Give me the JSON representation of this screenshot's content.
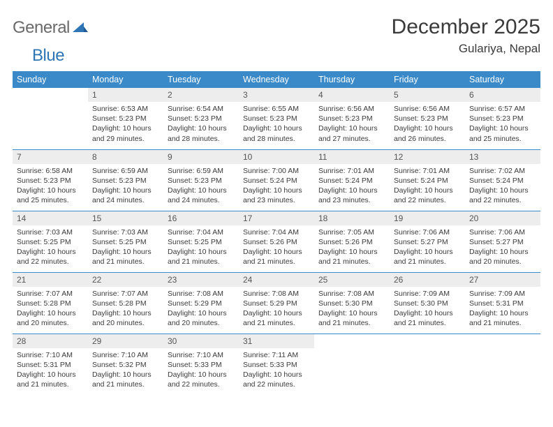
{
  "brand": {
    "part1": "General",
    "part2": "Blue"
  },
  "title": "December 2025",
  "location": "Gulariya, Nepal",
  "colors": {
    "header_bg": "#3a8ac9",
    "header_text": "#ffffff",
    "daynum_bg": "#ededed",
    "daynum_text": "#555555",
    "body_text": "#3a3a3a",
    "rule": "#3a8ac9",
    "brand_gray": "#6a6a6a",
    "brand_blue": "#2e75b6"
  },
  "weekdays": [
    "Sunday",
    "Monday",
    "Tuesday",
    "Wednesday",
    "Thursday",
    "Friday",
    "Saturday"
  ],
  "weeks": [
    [
      {
        "n": "",
        "sr": "",
        "ss": "",
        "dl": ""
      },
      {
        "n": "1",
        "sr": "Sunrise: 6:53 AM",
        "ss": "Sunset: 5:23 PM",
        "dl": "Daylight: 10 hours and 29 minutes."
      },
      {
        "n": "2",
        "sr": "Sunrise: 6:54 AM",
        "ss": "Sunset: 5:23 PM",
        "dl": "Daylight: 10 hours and 28 minutes."
      },
      {
        "n": "3",
        "sr": "Sunrise: 6:55 AM",
        "ss": "Sunset: 5:23 PM",
        "dl": "Daylight: 10 hours and 28 minutes."
      },
      {
        "n": "4",
        "sr": "Sunrise: 6:56 AM",
        "ss": "Sunset: 5:23 PM",
        "dl": "Daylight: 10 hours and 27 minutes."
      },
      {
        "n": "5",
        "sr": "Sunrise: 6:56 AM",
        "ss": "Sunset: 5:23 PM",
        "dl": "Daylight: 10 hours and 26 minutes."
      },
      {
        "n": "6",
        "sr": "Sunrise: 6:57 AM",
        "ss": "Sunset: 5:23 PM",
        "dl": "Daylight: 10 hours and 25 minutes."
      }
    ],
    [
      {
        "n": "7",
        "sr": "Sunrise: 6:58 AM",
        "ss": "Sunset: 5:23 PM",
        "dl": "Daylight: 10 hours and 25 minutes."
      },
      {
        "n": "8",
        "sr": "Sunrise: 6:59 AM",
        "ss": "Sunset: 5:23 PM",
        "dl": "Daylight: 10 hours and 24 minutes."
      },
      {
        "n": "9",
        "sr": "Sunrise: 6:59 AM",
        "ss": "Sunset: 5:23 PM",
        "dl": "Daylight: 10 hours and 24 minutes."
      },
      {
        "n": "10",
        "sr": "Sunrise: 7:00 AM",
        "ss": "Sunset: 5:24 PM",
        "dl": "Daylight: 10 hours and 23 minutes."
      },
      {
        "n": "11",
        "sr": "Sunrise: 7:01 AM",
        "ss": "Sunset: 5:24 PM",
        "dl": "Daylight: 10 hours and 23 minutes."
      },
      {
        "n": "12",
        "sr": "Sunrise: 7:01 AM",
        "ss": "Sunset: 5:24 PM",
        "dl": "Daylight: 10 hours and 22 minutes."
      },
      {
        "n": "13",
        "sr": "Sunrise: 7:02 AM",
        "ss": "Sunset: 5:24 PM",
        "dl": "Daylight: 10 hours and 22 minutes."
      }
    ],
    [
      {
        "n": "14",
        "sr": "Sunrise: 7:03 AM",
        "ss": "Sunset: 5:25 PM",
        "dl": "Daylight: 10 hours and 22 minutes."
      },
      {
        "n": "15",
        "sr": "Sunrise: 7:03 AM",
        "ss": "Sunset: 5:25 PM",
        "dl": "Daylight: 10 hours and 21 minutes."
      },
      {
        "n": "16",
        "sr": "Sunrise: 7:04 AM",
        "ss": "Sunset: 5:25 PM",
        "dl": "Daylight: 10 hours and 21 minutes."
      },
      {
        "n": "17",
        "sr": "Sunrise: 7:04 AM",
        "ss": "Sunset: 5:26 PM",
        "dl": "Daylight: 10 hours and 21 minutes."
      },
      {
        "n": "18",
        "sr": "Sunrise: 7:05 AM",
        "ss": "Sunset: 5:26 PM",
        "dl": "Daylight: 10 hours and 21 minutes."
      },
      {
        "n": "19",
        "sr": "Sunrise: 7:06 AM",
        "ss": "Sunset: 5:27 PM",
        "dl": "Daylight: 10 hours and 21 minutes."
      },
      {
        "n": "20",
        "sr": "Sunrise: 7:06 AM",
        "ss": "Sunset: 5:27 PM",
        "dl": "Daylight: 10 hours and 20 minutes."
      }
    ],
    [
      {
        "n": "21",
        "sr": "Sunrise: 7:07 AM",
        "ss": "Sunset: 5:28 PM",
        "dl": "Daylight: 10 hours and 20 minutes."
      },
      {
        "n": "22",
        "sr": "Sunrise: 7:07 AM",
        "ss": "Sunset: 5:28 PM",
        "dl": "Daylight: 10 hours and 20 minutes."
      },
      {
        "n": "23",
        "sr": "Sunrise: 7:08 AM",
        "ss": "Sunset: 5:29 PM",
        "dl": "Daylight: 10 hours and 20 minutes."
      },
      {
        "n": "24",
        "sr": "Sunrise: 7:08 AM",
        "ss": "Sunset: 5:29 PM",
        "dl": "Daylight: 10 hours and 21 minutes."
      },
      {
        "n": "25",
        "sr": "Sunrise: 7:08 AM",
        "ss": "Sunset: 5:30 PM",
        "dl": "Daylight: 10 hours and 21 minutes."
      },
      {
        "n": "26",
        "sr": "Sunrise: 7:09 AM",
        "ss": "Sunset: 5:30 PM",
        "dl": "Daylight: 10 hours and 21 minutes."
      },
      {
        "n": "27",
        "sr": "Sunrise: 7:09 AM",
        "ss": "Sunset: 5:31 PM",
        "dl": "Daylight: 10 hours and 21 minutes."
      }
    ],
    [
      {
        "n": "28",
        "sr": "Sunrise: 7:10 AM",
        "ss": "Sunset: 5:31 PM",
        "dl": "Daylight: 10 hours and 21 minutes."
      },
      {
        "n": "29",
        "sr": "Sunrise: 7:10 AM",
        "ss": "Sunset: 5:32 PM",
        "dl": "Daylight: 10 hours and 21 minutes."
      },
      {
        "n": "30",
        "sr": "Sunrise: 7:10 AM",
        "ss": "Sunset: 5:33 PM",
        "dl": "Daylight: 10 hours and 22 minutes."
      },
      {
        "n": "31",
        "sr": "Sunrise: 7:11 AM",
        "ss": "Sunset: 5:33 PM",
        "dl": "Daylight: 10 hours and 22 minutes."
      },
      {
        "n": "",
        "sr": "",
        "ss": "",
        "dl": ""
      },
      {
        "n": "",
        "sr": "",
        "ss": "",
        "dl": ""
      },
      {
        "n": "",
        "sr": "",
        "ss": "",
        "dl": ""
      }
    ]
  ]
}
